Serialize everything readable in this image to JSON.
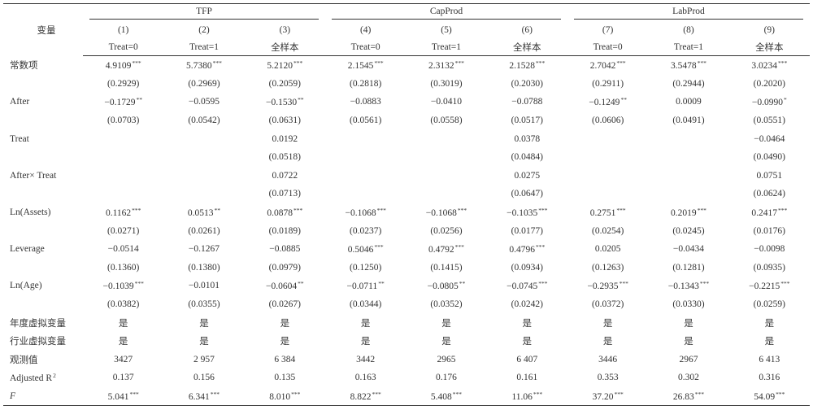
{
  "table": {
    "stub": "变量",
    "groups": [
      "TFP",
      "CapProd",
      "LabProd"
    ],
    "numbers": [
      "(1)",
      "(2)",
      "(3)",
      "(4)",
      "(5)",
      "(6)",
      "(7)",
      "(8)",
      "(9)"
    ],
    "samples": [
      "Treat=0",
      "Treat=1",
      "全样本",
      "Treat=0",
      "Treat=1",
      "全样本",
      "Treat=0",
      "Treat=1",
      "全样本"
    ],
    "rows": [
      {
        "label": "常数项",
        "cells": [
          {
            "t": "4.9109",
            "sup": "***"
          },
          {
            "t": "5.7380",
            "sup": "***"
          },
          {
            "t": "5.2120",
            "sup": "***"
          },
          {
            "t": "2.1545",
            "sup": "***"
          },
          {
            "t": "2.3132",
            "sup": "***"
          },
          {
            "t": "2.1528",
            "sup": "***"
          },
          {
            "t": "2.7042",
            "sup": "***"
          },
          {
            "t": "3.5478",
            "sup": "***"
          },
          {
            "t": "3.0234",
            "sup": "***"
          }
        ]
      },
      {
        "label": null,
        "cells": [
          "(0.2929)",
          "(0.2969)",
          "(0.2059)",
          "(0.2818)",
          "(0.3019)",
          "(0.2030)",
          "(0.2911)",
          "(0.2944)",
          "(0.2020)"
        ]
      },
      {
        "label": "After",
        "cells": [
          {
            "t": "−0.1729",
            "sup": "**"
          },
          "−0.0595",
          {
            "t": "−0.1530",
            "sup": "**"
          },
          "−0.0883",
          "−0.0410",
          "−0.0788",
          {
            "t": "−0.1249",
            "sup": "**"
          },
          "0.0009",
          {
            "t": "−0.0990",
            "sup": "*"
          }
        ]
      },
      {
        "label": null,
        "cells": [
          "(0.0703)",
          "(0.0542)",
          "(0.0631)",
          "(0.0561)",
          "(0.0558)",
          "(0.0517)",
          "(0.0606)",
          "(0.0491)",
          "(0.0551)"
        ]
      },
      {
        "label": "Treat",
        "cells": [
          null,
          null,
          "0.0192",
          null,
          null,
          "0.0378",
          null,
          null,
          "−0.0464"
        ]
      },
      {
        "label": null,
        "cells": [
          null,
          null,
          "(0.0518)",
          null,
          null,
          "(0.0484)",
          null,
          null,
          "(0.0490)"
        ]
      },
      {
        "label": "After× Treat",
        "cells": [
          null,
          null,
          "0.0722",
          null,
          null,
          "0.0275",
          null,
          null,
          "0.0751"
        ]
      },
      {
        "label": null,
        "cells": [
          null,
          null,
          "(0.0713)",
          null,
          null,
          "(0.0647)",
          null,
          null,
          "(0.0624)"
        ]
      },
      {
        "label": "Ln(Assets)",
        "cells": [
          {
            "t": "0.1162",
            "sup": "***"
          },
          {
            "t": "0.0513",
            "sup": "**"
          },
          {
            "t": "0.0878",
            "sup": "***"
          },
          {
            "t": "−0.1068",
            "sup": "***"
          },
          {
            "t": "−0.1068",
            "sup": "***"
          },
          {
            "t": "−0.1035",
            "sup": "***"
          },
          {
            "t": "0.2751",
            "sup": "***"
          },
          {
            "t": "0.2019",
            "sup": "***"
          },
          {
            "t": "0.2417",
            "sup": "***"
          }
        ]
      },
      {
        "label": null,
        "cells": [
          "(0.0271)",
          "(0.0261)",
          "(0.0189)",
          "(0.0237)",
          "(0.0256)",
          "(0.0177)",
          "(0.0254)",
          "(0.0245)",
          "(0.0176)"
        ]
      },
      {
        "label": "Leverage",
        "cells": [
          "−0.0514",
          "−0.1267",
          "−0.0885",
          {
            "t": "0.5046",
            "sup": "***"
          },
          {
            "t": "0.4792",
            "sup": "***"
          },
          {
            "t": "0.4796",
            "sup": "***"
          },
          "0.0205",
          "−0.0434",
          "−0.0098"
        ]
      },
      {
        "label": null,
        "cells": [
          "(0.1360)",
          "(0.1380)",
          "(0.0979)",
          "(0.1250)",
          "(0.1415)",
          "(0.0934)",
          "(0.1263)",
          "(0.1281)",
          "(0.0935)"
        ]
      },
      {
        "label": "Ln(Age)",
        "cells": [
          {
            "t": "−0.1039",
            "sup": "***"
          },
          "−0.0101",
          {
            "t": "−0.0604",
            "sup": "**"
          },
          {
            "t": "−0.0711",
            "sup": "**"
          },
          {
            "t": "−0.0805",
            "sup": "**"
          },
          {
            "t": "−0.0745",
            "sup": "***"
          },
          {
            "t": "−0.2935",
            "sup": "***"
          },
          {
            "t": "−0.1343",
            "sup": "***"
          },
          {
            "t": "−0.2215",
            "sup": "***"
          }
        ]
      },
      {
        "label": null,
        "cells": [
          "(0.0382)",
          "(0.0355)",
          "(0.0267)",
          "(0.0344)",
          "(0.0352)",
          "(0.0242)",
          "(0.0372)",
          "(0.0330)",
          "(0.0259)"
        ]
      },
      {
        "label": "年度虚拟变量",
        "cells": [
          "是",
          "是",
          "是",
          "是",
          "是",
          "是",
          "是",
          "是",
          "是"
        ]
      },
      {
        "label": "行业虚拟变量",
        "cells": [
          "是",
          "是",
          "是",
          "是",
          "是",
          "是",
          "是",
          "是",
          "是"
        ]
      },
      {
        "label": "观测值",
        "cells": [
          "3427",
          "2 957",
          "6 384",
          "3442",
          "2965",
          "6 407",
          "3446",
          "2967",
          "6 413"
        ]
      },
      {
        "label": {
          "t": "Adjusted R",
          "sup": "2"
        },
        "cells": [
          "0.137",
          "0.156",
          "0.135",
          "0.163",
          "0.176",
          "0.161",
          "0.353",
          "0.302",
          "0.316"
        ]
      },
      {
        "label": {
          "t": "F",
          "italic": true
        },
        "cells": [
          {
            "t": "5.041",
            "sup": "***"
          },
          {
            "t": "6.341",
            "sup": "***"
          },
          {
            "t": "8.010",
            "sup": "***"
          },
          {
            "t": "8.822",
            "sup": "***"
          },
          {
            "t": "5.408",
            "sup": "***"
          },
          {
            "t": "11.06",
            "sup": "***"
          },
          {
            "t": "37.20",
            "sup": "***"
          },
          {
            "t": "26.83",
            "sup": "***"
          },
          {
            "t": "54.09",
            "sup": "***"
          }
        ]
      }
    ]
  }
}
